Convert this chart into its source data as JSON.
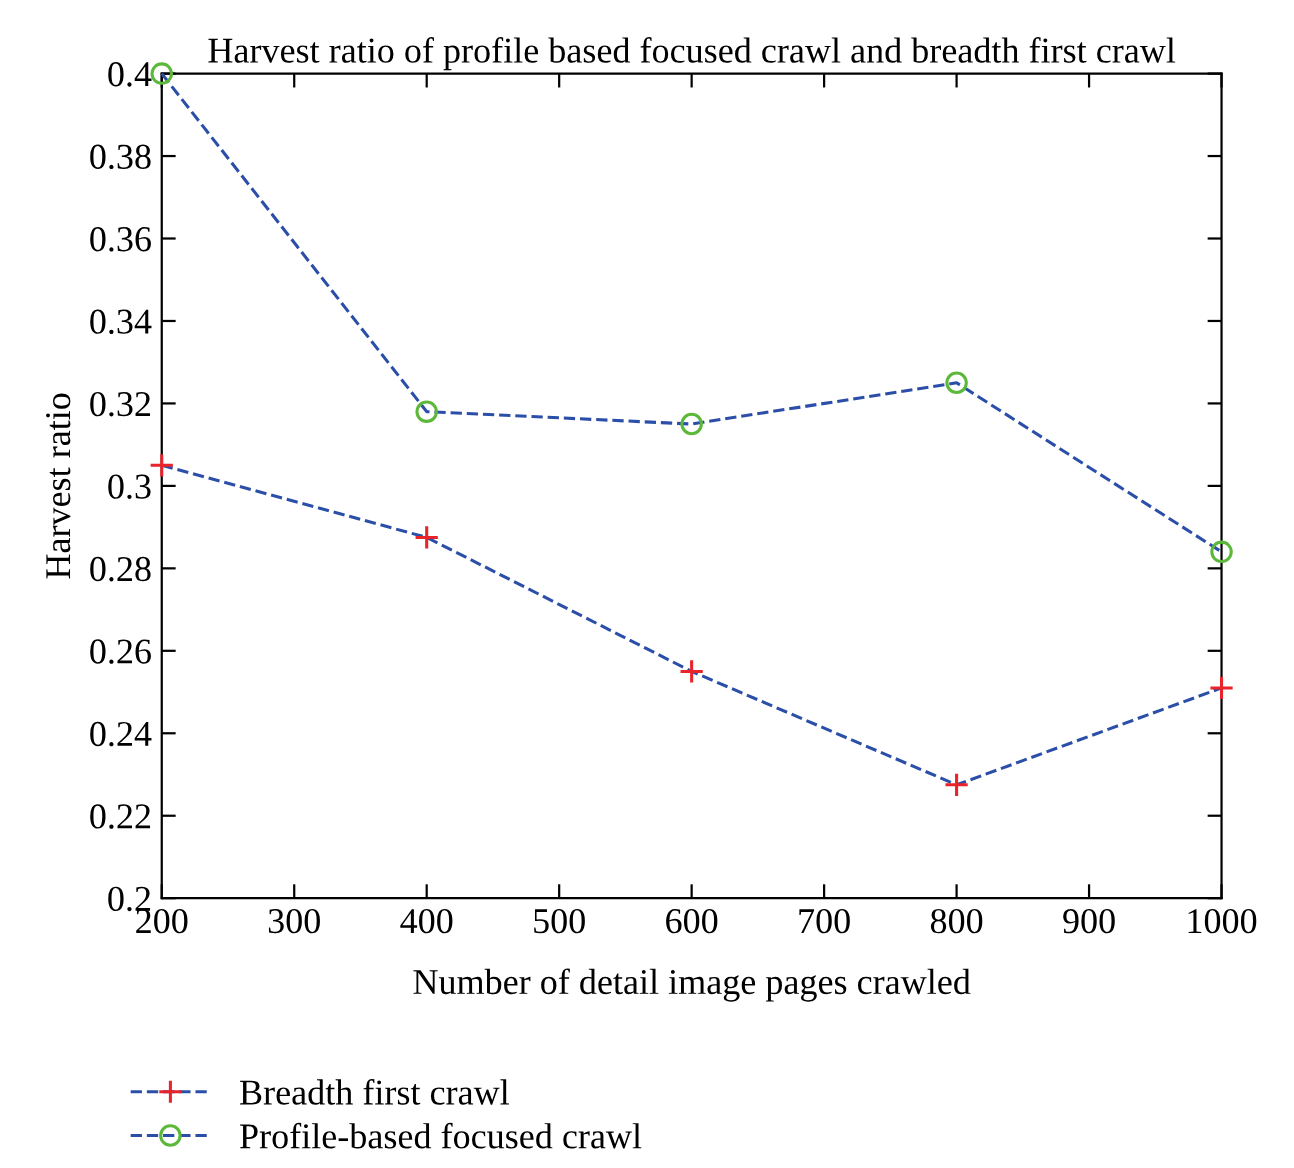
{
  "chart_data": {
    "type": "line",
    "title": "Harvest ratio of profile based focused crawl and breadth first crawl",
    "xlabel": "Number of detail image pages crawled",
    "ylabel": "Harvest ratio",
    "x": [
      200,
      400,
      600,
      800,
      1000
    ],
    "series": [
      {
        "name": "Breadth first crawl",
        "color": "#2b4fa8",
        "colors": [
          "#e8232a",
          "#e8232a",
          "#e8232a",
          "#e8232a",
          "#e8232a"
        ],
        "marker": "cross",
        "values": [
          0.305,
          0.2875,
          0.255,
          0.2275,
          0.251
        ]
      },
      {
        "name": "Profile-based focused crawl",
        "color": "#2b4fa8",
        "colors": [
          "#5cb83a",
          "#5cb83a",
          "#5cb83a",
          "#5cb83a",
          "#5cb83a"
        ],
        "marker": "circle",
        "values": [
          0.4,
          0.318,
          0.315,
          0.325,
          0.284
        ]
      }
    ],
    "xlim": [
      200,
      1000
    ],
    "ylim": [
      0.2,
      0.4
    ],
    "xticks": [
      200,
      300,
      400,
      500,
      600,
      700,
      800,
      900,
      1000
    ],
    "yticks": [
      0.2,
      0.22,
      0.24,
      0.26,
      0.28,
      0.3,
      0.32,
      0.34,
      0.36,
      0.38,
      0.4
    ],
    "line_style": "dashed",
    "grid": false,
    "legend": "bottom left"
  }
}
